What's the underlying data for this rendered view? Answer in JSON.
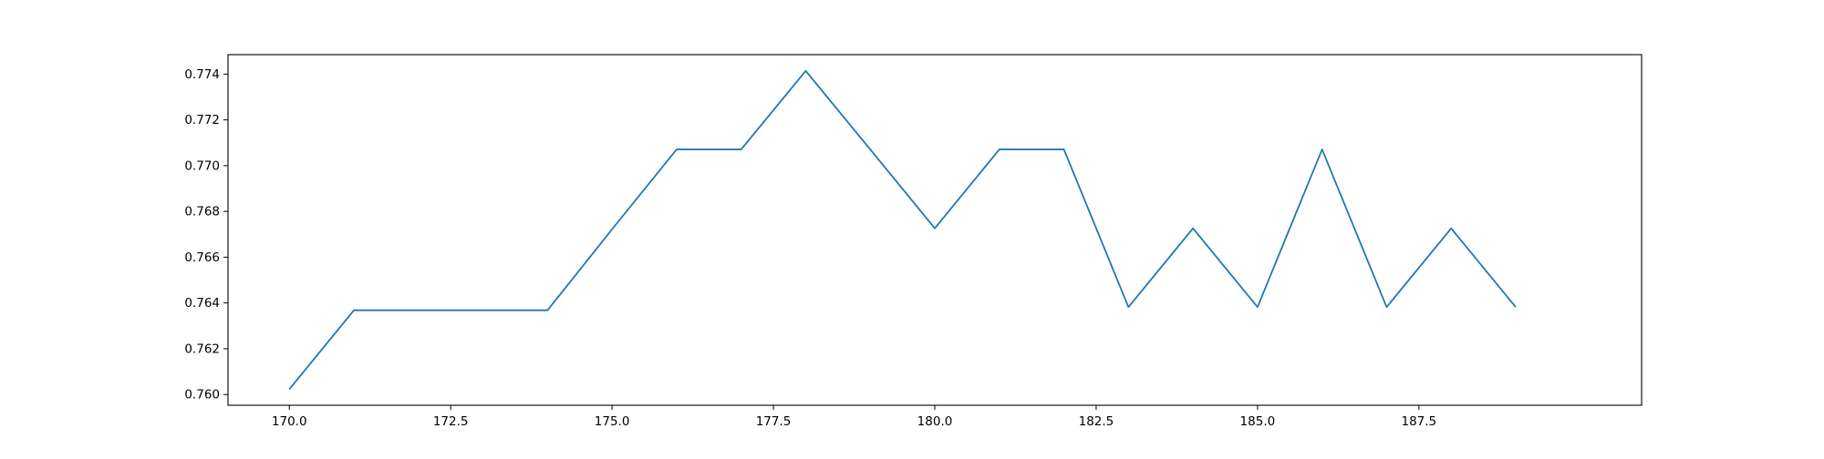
{
  "chart_data": {
    "type": "line",
    "title": "",
    "xlabel": "",
    "ylabel": "",
    "xlim": [
      169.05,
      190.95
    ],
    "ylim": [
      0.75953,
      0.77485
    ],
    "grid": false,
    "legend": "none",
    "x_ticks": [
      170.0,
      172.5,
      175.0,
      177.5,
      180.0,
      182.5,
      185.0,
      187.5
    ],
    "x_tick_labels": [
      "170.0",
      "172.5",
      "175.0",
      "177.5",
      "180.0",
      "182.5",
      "185.0",
      "187.5"
    ],
    "y_ticks": [
      0.76,
      0.762,
      0.764,
      0.766,
      0.768,
      0.77,
      0.772,
      0.774
    ],
    "y_tick_labels": [
      "0.760",
      "0.762",
      "0.764",
      "0.766",
      "0.768",
      "0.770",
      "0.772",
      "0.774"
    ],
    "series": [
      {
        "color": "#1f77b4",
        "x": [
          170,
          171,
          172,
          173,
          174,
          175,
          176,
          177,
          178,
          179,
          180,
          181,
          182,
          183,
          184,
          185,
          186,
          187,
          188,
          189
        ],
        "y": [
          0.76023,
          0.76368,
          0.76368,
          0.76368,
          0.76368,
          0.76722,
          0.77071,
          0.77071,
          0.77414,
          0.77071,
          0.76726,
          0.77071,
          0.77071,
          0.76382,
          0.76726,
          0.76382,
          0.77071,
          0.76382,
          0.76726,
          0.76382
        ]
      }
    ]
  }
}
